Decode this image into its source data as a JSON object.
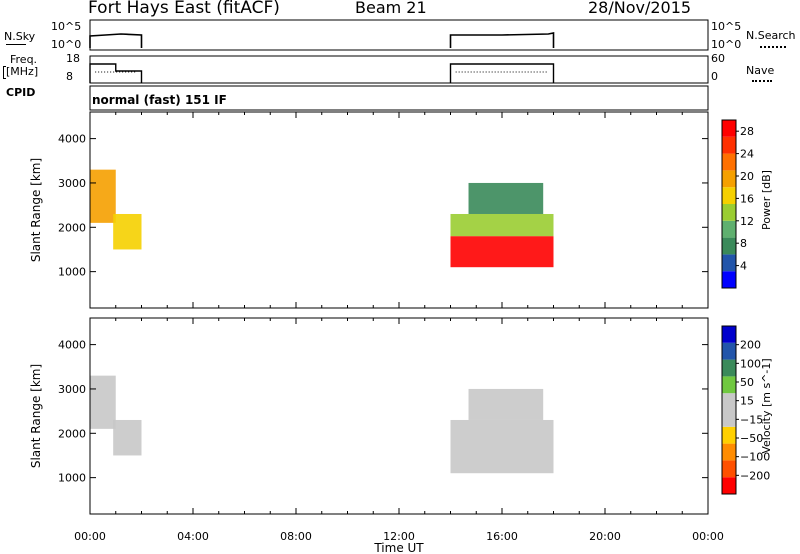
{
  "header": {
    "station": "Fort Hays East (fitACF)",
    "beam": "Beam 21",
    "date": "28/Nov/2015"
  },
  "panels": {
    "nsky": {
      "label": "N.Sky",
      "left_ticks": [
        "10^5",
        "10^0"
      ],
      "right_ticks": [
        "10^5",
        "10^0"
      ],
      "right_label": "N.Search"
    },
    "freq": {
      "label_line1": "Freq.",
      "label_line2": "[MHz]",
      "left_ticks": [
        "18",
        "8"
      ],
      "right_ticks": [
        "60",
        "0"
      ],
      "right_label": "Nave"
    },
    "cpid": {
      "label": "CPID",
      "value": "normal (fast) 151 IF"
    }
  },
  "colors": {
    "power": [
      "#0000ff",
      "#2255aa",
      "#3a8a5a",
      "#5fb06f",
      "#9acd32",
      "#f5d000",
      "#f5a000",
      "#ff7000",
      "#ff3000",
      "#ff0000"
    ],
    "velocity": [
      "#ff0000",
      "#ff5000",
      "#ff8c00",
      "#ffd000",
      "#c8c8c8",
      "#c8c8c8",
      "#70c840",
      "#3a8a5a",
      "#2255aa",
      "#0000cc"
    ]
  },
  "chart_data": [
    {
      "type": "heatmap",
      "name": "power",
      "xlabel": "Time UT",
      "ylabel": "Slant Range [km]",
      "xlim": [
        0,
        24
      ],
      "ylim": [
        180,
        4600
      ],
      "xticks": [
        "00:00",
        "04:00",
        "08:00",
        "12:00",
        "16:00",
        "20:00",
        "00:00"
      ],
      "yticks": [
        1000,
        2000,
        3000,
        4000
      ],
      "colorbar": {
        "label": "Power [dB]",
        "ticks": [
          "4",
          "8",
          "12",
          "16",
          "20",
          "24",
          "28"
        ],
        "range": [
          0,
          30
        ]
      },
      "regions": [
        {
          "t0": 0.0,
          "t1": 1.0,
          "r0": 2100,
          "r1": 3300,
          "level": 18
        },
        {
          "t0": 0.9,
          "t1": 2.0,
          "r0": 1500,
          "r1": 2300,
          "level": 16
        },
        {
          "t0": 14.0,
          "t1": 18.0,
          "r0": 1100,
          "r1": 1800,
          "level": 28
        },
        {
          "t0": 14.0,
          "t1": 18.0,
          "r0": 1800,
          "r1": 2300,
          "level": 14
        },
        {
          "t0": 14.7,
          "t1": 17.6,
          "r0": 2300,
          "r1": 3000,
          "level": 8
        }
      ]
    },
    {
      "type": "heatmap",
      "name": "velocity",
      "xlabel": "Time UT",
      "ylabel": "Slant Range [km]",
      "xlim": [
        0,
        24
      ],
      "ylim": [
        180,
        4600
      ],
      "xticks": [
        "00:00",
        "04:00",
        "08:00",
        "12:00",
        "16:00",
        "20:00",
        "00:00"
      ],
      "yticks": [
        1000,
        2000,
        3000,
        4000
      ],
      "colorbar": {
        "label": "Velocity [m s^-1]",
        "ticks": [
          "200",
          "100",
          "50",
          "15",
          "−15",
          "−50",
          "−100",
          "−200"
        ]
      },
      "regions": [
        {
          "t0": 0.0,
          "t1": 1.0,
          "r0": 2100,
          "r1": 3300,
          "level": 0
        },
        {
          "t0": 0.9,
          "t1": 2.0,
          "r0": 1500,
          "r1": 2300,
          "level": 0
        },
        {
          "t0": 14.0,
          "t1": 18.0,
          "r0": 1100,
          "r1": 2300,
          "level": 0
        },
        {
          "t0": 14.7,
          "t1": 17.6,
          "r0": 2300,
          "r1": 3000,
          "level": 0
        }
      ]
    }
  ]
}
